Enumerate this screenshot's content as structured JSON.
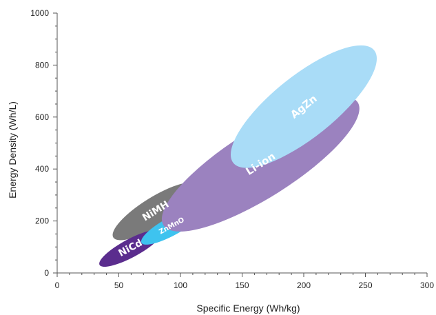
{
  "chart_data": {
    "type": "scatter",
    "title": "",
    "xlabel": "Specific Energy (Wh/kg)",
    "ylabel": "Energy Density (Wh/L)",
    "xlim": [
      0,
      300
    ],
    "ylim": [
      0,
      1000
    ],
    "xticks": [
      0,
      50,
      100,
      150,
      200,
      250,
      300
    ],
    "yticks": [
      0,
      200,
      400,
      600,
      800,
      1000
    ],
    "x_tick_labels": [
      "0",
      "50",
      "100",
      "150",
      "200",
      "250",
      "300"
    ],
    "y_tick_labels": [
      "0",
      "200",
      "400",
      "600",
      "800",
      "1000"
    ],
    "grid": false,
    "regions": [
      {
        "name": "NiMH",
        "x_range": [
          45,
          115
        ],
        "y_range": [
          135,
          340
        ],
        "color": "#7a7a7a",
        "label_size": 14
      },
      {
        "name": "NiCd",
        "x_range": [
          34,
          85
        ],
        "y_range": [
          30,
          160
        ],
        "color": "#5b2d8e",
        "label_size": 14
      },
      {
        "name": "ZnMnO",
        "x_range": [
          68,
          118
        ],
        "y_range": [
          115,
          245
        ],
        "color": "#3ec3ef",
        "label_size": 10
      },
      {
        "name": "Li-ion",
        "x_range": [
          85,
          245
        ],
        "y_range": [
          180,
          660
        ],
        "color": "#9b82bf",
        "label_size": 15
      },
      {
        "name": "AgZn",
        "x_range": [
          142,
          258
        ],
        "y_range": [
          420,
          860
        ],
        "color": "#a9dcf7",
        "label_size": 15
      }
    ]
  }
}
